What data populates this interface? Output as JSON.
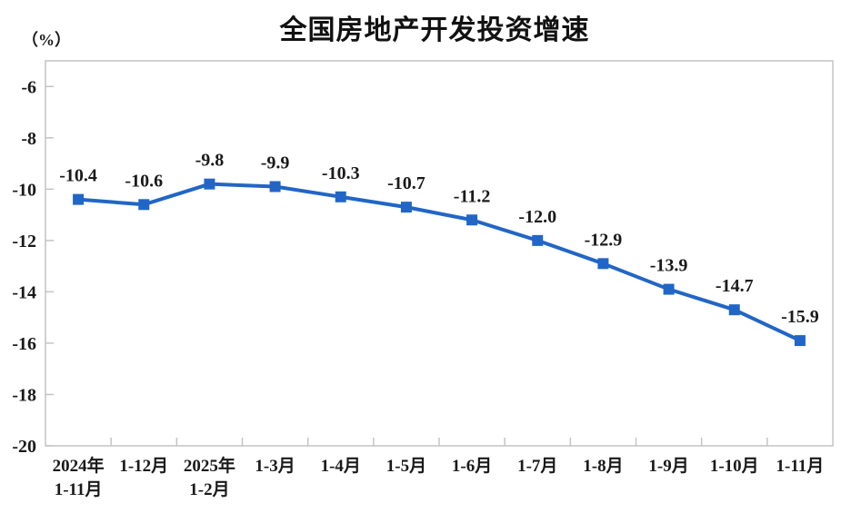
{
  "chart_data": {
    "type": "line",
    "title": "全国房地产开发投资增速",
    "unit_label": "（%）",
    "categories": [
      "2024年\n1-11月",
      "1-12月",
      "2025年\n1-2月",
      "1-3月",
      "1-4月",
      "1-5月",
      "1-6月",
      "1-7月",
      "1-8月",
      "1-9月",
      "1-10月",
      "1-11月"
    ],
    "values": [
      -10.4,
      -10.6,
      -9.8,
      -9.9,
      -10.3,
      -10.7,
      -11.2,
      -12.0,
      -12.9,
      -13.9,
      -14.7,
      -15.9
    ],
    "data_labels": [
      "-10.4",
      "-10.6",
      "-9.8",
      "-9.9",
      "-10.3",
      "-10.7",
      "-11.2",
      "-12.0",
      "-12.9",
      "-13.9",
      "-14.7",
      "-15.9"
    ],
    "xlabel": "",
    "ylabel": "",
    "ylim": [
      -20,
      -5
    ],
    "yticks": [
      -6,
      -8,
      -10,
      -12,
      -14,
      -16,
      -18,
      -20
    ],
    "grid": false,
    "legend": "none",
    "marker": "square",
    "line_color": "#2166c6",
    "axis_color": "#c4c4c4",
    "text_color": "#1a1a1a"
  }
}
